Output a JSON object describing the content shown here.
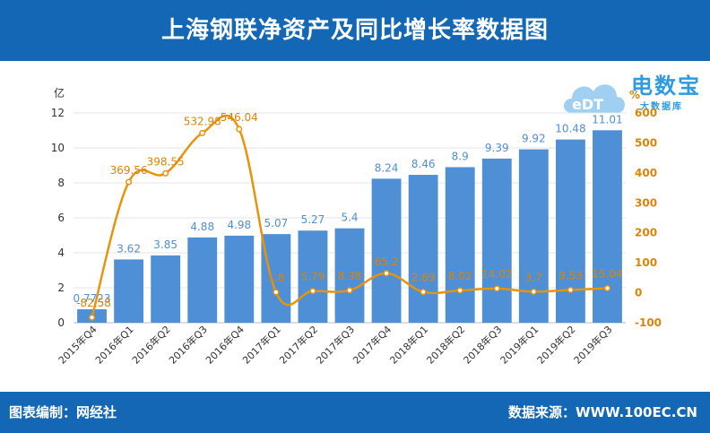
{
  "header": {
    "title": "上海钢联净资产及同比增长率数据图"
  },
  "footer": {
    "editor": "图表编制：网经社",
    "source": "数据来源：WWW.100EC.CN"
  },
  "logo": {
    "main_text": "电数宝",
    "sub_text": "大数据库",
    "badge_text": "eDT"
  },
  "chart_data": {
    "type": "bar",
    "categories": [
      "2015年Q4",
      "2016年Q1",
      "2016年Q2",
      "2016年Q3",
      "2016年Q4",
      "2017年Q1",
      "2017年Q2",
      "2017年Q3",
      "2017年Q4",
      "2018年Q1",
      "2018年Q2",
      "2018年Q3",
      "2019年Q1",
      "2019年Q2",
      "2019年Q3"
    ],
    "series": [
      {
        "type": "bar",
        "axis": "left",
        "color": "#4f8fd5",
        "values": [
          0.77,
          3.62,
          3.85,
          4.88,
          4.98,
          5.07,
          5.27,
          5.4,
          8.24,
          8.46,
          8.9,
          9.39,
          9.92,
          10.48,
          11.01
        ],
        "labels": [
          "0.7723",
          "3.62",
          "3.85",
          "4.88",
          "4.98",
          "5.07",
          "5.27",
          "5.4",
          "8.24",
          "8.46",
          "8.9",
          "9.39",
          "9.92",
          "10.48",
          "11.01"
        ]
      },
      {
        "type": "line",
        "axis": "right",
        "color": "#e8930c",
        "values": [
          -82.58,
          369.56,
          398.55,
          532.98,
          546.04,
          1.8,
          5.79,
          8.38,
          65.2,
          2.69,
          8.02,
          14.02,
          3.7,
          9.53,
          15.04
        ],
        "labels": [
          "-82.58",
          "369.56",
          "398.55",
          "532.98",
          "546.04",
          "1.8",
          "5.79",
          "8.38",
          "65.2",
          "2.69",
          "8.02",
          "14.02",
          "3.7",
          "9.53",
          "15.04"
        ]
      }
    ],
    "y_left": {
      "unit": "亿",
      "min": 0,
      "max": 12,
      "ticks": [
        "0",
        "2",
        "4",
        "6",
        "8",
        "10",
        "12"
      ]
    },
    "y_right": {
      "unit": "%",
      "min": -100,
      "max": 600,
      "ticks": [
        "-100",
        "0",
        "100",
        "200",
        "300",
        "400",
        "500",
        "600"
      ]
    },
    "grid": true
  }
}
